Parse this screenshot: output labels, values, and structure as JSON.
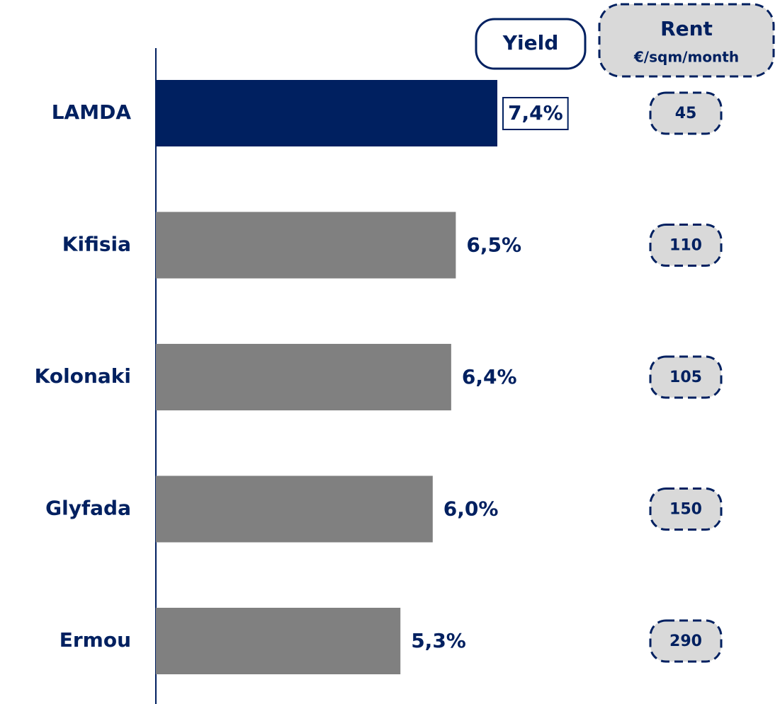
{
  "chart_data": {
    "type": "bar",
    "orientation": "horizontal",
    "categories": [
      "LAMDA",
      "Kifisia",
      "Kolonaki",
      "Glyfada",
      "Ermou"
    ],
    "values": [
      7.4,
      6.5,
      6.4,
      6.0,
      5.3
    ],
    "value_labels": [
      "7,4%",
      "6,5%",
      "6,4%",
      "6,0%",
      "5,3%"
    ],
    "colors": [
      "#002060",
      "#808080",
      "#808080",
      "#808080",
      "#808080"
    ],
    "value_header": "Yield",
    "rent": {
      "title": "Rent",
      "subtitle": "€/sqm/month",
      "values": [
        45,
        110,
        105,
        150,
        290
      ]
    }
  }
}
